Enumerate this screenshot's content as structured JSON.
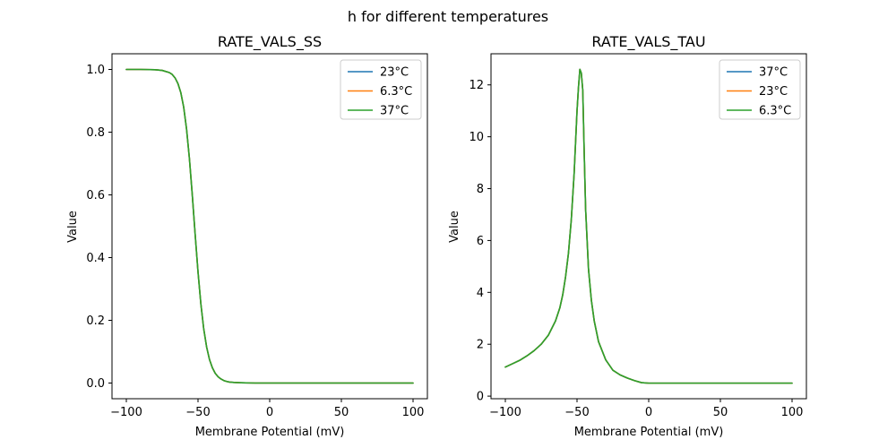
{
  "suptitle": "h for different temperatures",
  "chart_data": [
    {
      "type": "line",
      "title": "RATE_VALS_SS",
      "xlabel": "Membrane Potential (mV)",
      "ylabel": "Value",
      "xlim": [
        -110,
        110
      ],
      "ylim": [
        -0.05,
        1.05
      ],
      "xticks": [
        -100,
        -50,
        0,
        50,
        100
      ],
      "yticks": [
        0.0,
        0.2,
        0.4,
        0.6,
        0.8,
        1.0
      ],
      "ytick_labels": [
        "0.0",
        "0.2",
        "0.4",
        "0.6",
        "0.8",
        "1.0"
      ],
      "grid": false,
      "legend_position": "top-right",
      "x": [
        -100,
        -90,
        -80,
        -75,
        -70,
        -68,
        -66,
        -64,
        -62,
        -60,
        -58,
        -56,
        -54,
        -52,
        -50,
        -48,
        -46,
        -44,
        -42,
        -40,
        -38,
        -36,
        -34,
        -32,
        -30,
        -28,
        -25,
        -20,
        -10,
        0,
        25,
        50,
        75,
        100
      ],
      "series": [
        {
          "name": "23°C",
          "color": "#1f77b4",
          "values": [
            1.0,
            1.0,
            0.999,
            0.997,
            0.99,
            0.984,
            0.973,
            0.955,
            0.926,
            0.88,
            0.81,
            0.716,
            0.6,
            0.474,
            0.354,
            0.252,
            0.172,
            0.115,
            0.075,
            0.049,
            0.031,
            0.02,
            0.013,
            0.008,
            0.005,
            0.003,
            0.002,
            0.001,
            0.0,
            0.0,
            0.0,
            0.0,
            0.0,
            0.0
          ]
        },
        {
          "name": "6.3°C",
          "color": "#ff7f0e",
          "values": [
            1.0,
            1.0,
            0.999,
            0.997,
            0.99,
            0.984,
            0.973,
            0.955,
            0.926,
            0.88,
            0.81,
            0.716,
            0.6,
            0.474,
            0.354,
            0.252,
            0.172,
            0.115,
            0.075,
            0.049,
            0.031,
            0.02,
            0.013,
            0.008,
            0.005,
            0.003,
            0.002,
            0.001,
            0.0,
            0.0,
            0.0,
            0.0,
            0.0,
            0.0
          ]
        },
        {
          "name": "37°C",
          "color": "#2ca02c",
          "values": [
            1.0,
            1.0,
            0.999,
            0.997,
            0.99,
            0.984,
            0.973,
            0.955,
            0.926,
            0.88,
            0.81,
            0.716,
            0.6,
            0.474,
            0.354,
            0.252,
            0.172,
            0.115,
            0.075,
            0.049,
            0.031,
            0.02,
            0.013,
            0.008,
            0.005,
            0.003,
            0.002,
            0.001,
            0.0,
            0.0,
            0.0,
            0.0,
            0.0,
            0.0
          ]
        }
      ]
    },
    {
      "type": "line",
      "title": "RATE_VALS_TAU",
      "xlabel": "Membrane Potential (mV)",
      "ylabel": "Value",
      "xlim": [
        -110,
        110
      ],
      "ylim": [
        -0.1,
        13.2
      ],
      "xticks": [
        -100,
        -50,
        0,
        50,
        100
      ],
      "yticks": [
        0,
        2,
        4,
        6,
        8,
        10,
        12
      ],
      "ytick_labels": [
        "0",
        "2",
        "4",
        "6",
        "8",
        "10",
        "12"
      ],
      "grid": false,
      "legend_position": "top-right",
      "x": [
        -100,
        -95,
        -90,
        -85,
        -80,
        -75,
        -70,
        -65,
        -62,
        -60,
        -58,
        -56,
        -54,
        -52,
        -50,
        -49,
        -48,
        -47,
        -46,
        -45,
        -44,
        -42,
        -40,
        -38,
        -35,
        -30,
        -25,
        -20,
        -15,
        -10,
        -5,
        0,
        25,
        50,
        75,
        100
      ],
      "series": [
        {
          "name": "37°C",
          "color": "#1f77b4",
          "values": [
            1.12,
            1.25,
            1.38,
            1.55,
            1.75,
            2.0,
            2.35,
            2.9,
            3.4,
            3.9,
            4.6,
            5.5,
            6.8,
            8.6,
            11.0,
            11.9,
            12.6,
            12.45,
            11.8,
            9.4,
            7.2,
            4.9,
            3.7,
            2.9,
            2.1,
            1.4,
            1.0,
            0.82,
            0.7,
            0.6,
            0.52,
            0.5,
            0.5,
            0.5,
            0.5,
            0.5
          ]
        },
        {
          "name": "23°C",
          "color": "#ff7f0e",
          "values": [
            1.12,
            1.25,
            1.38,
            1.55,
            1.75,
            2.0,
            2.35,
            2.9,
            3.4,
            3.9,
            4.6,
            5.5,
            6.8,
            8.6,
            11.0,
            11.9,
            12.6,
            12.45,
            11.8,
            9.4,
            7.2,
            4.9,
            3.7,
            2.9,
            2.1,
            1.4,
            1.0,
            0.82,
            0.7,
            0.6,
            0.52,
            0.5,
            0.5,
            0.5,
            0.5,
            0.5
          ]
        },
        {
          "name": "6.3°C",
          "color": "#2ca02c",
          "values": [
            1.12,
            1.25,
            1.38,
            1.55,
            1.75,
            2.0,
            2.35,
            2.9,
            3.4,
            3.9,
            4.6,
            5.5,
            6.8,
            8.6,
            11.0,
            11.9,
            12.6,
            12.45,
            11.8,
            9.4,
            7.2,
            4.9,
            3.7,
            2.9,
            2.1,
            1.4,
            1.0,
            0.82,
            0.7,
            0.6,
            0.52,
            0.5,
            0.5,
            0.5,
            0.5,
            0.5
          ]
        }
      ]
    }
  ]
}
